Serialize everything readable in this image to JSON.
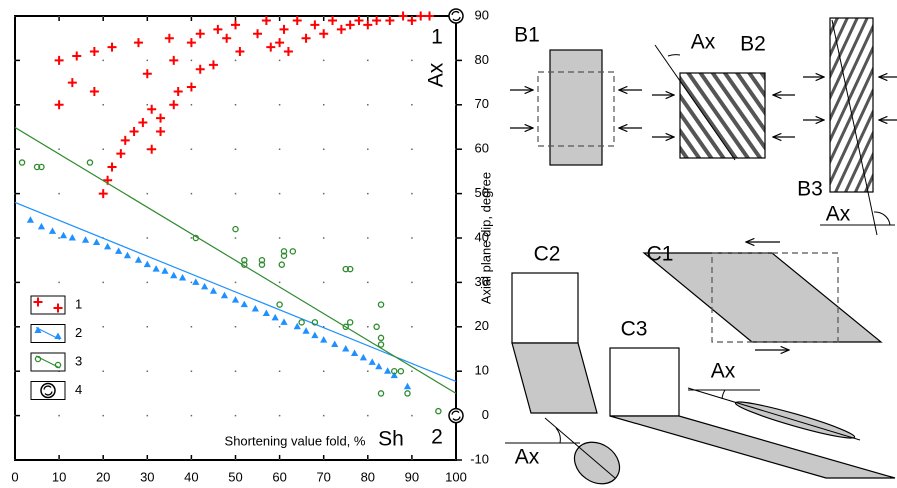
{
  "chart_data": {
    "type": "scatter",
    "x_label": "Shortening value fold, %",
    "y_label": "Axial plane dip, degree",
    "xlim": [
      0,
      100
    ],
    "xticks": [
      0,
      10,
      20,
      30,
      40,
      50,
      60,
      70,
      80,
      90,
      100
    ],
    "ylim": [
      -10,
      90
    ],
    "yticks": [
      -10,
      0,
      10,
      20,
      30,
      40,
      50,
      60,
      70,
      80,
      90
    ],
    "grid": "dots",
    "legend_position": "lower left",
    "annotations": [
      "1",
      "Ax",
      "2",
      "Sh"
    ],
    "series": [
      {
        "name": "1",
        "marker": "plus",
        "color": "#ff0000",
        "x": [
          10,
          10,
          14,
          13,
          18,
          18,
          20,
          21,
          22,
          24,
          22,
          25,
          27,
          29,
          31,
          31,
          33,
          33,
          28,
          30,
          35,
          36,
          37,
          36,
          40,
          40,
          42,
          42,
          45,
          46,
          48,
          50,
          51,
          55,
          57,
          58,
          60,
          61,
          62,
          64,
          66,
          68,
          70,
          72,
          74,
          76,
          78,
          80,
          82,
          85,
          88,
          90,
          92,
          94
        ],
        "y": [
          80,
          70,
          81,
          75,
          73,
          82,
          50,
          53,
          56,
          59,
          83,
          62,
          64,
          66,
          60,
          69,
          64,
          67,
          84,
          77,
          85,
          70,
          73,
          80,
          74,
          84,
          78,
          86,
          79,
          87,
          85,
          88,
          82,
          86,
          89,
          83,
          84,
          87,
          82,
          89,
          85,
          88,
          86,
          89,
          87,
          88,
          89,
          88,
          89,
          89,
          90,
          89,
          90,
          90
        ]
      },
      {
        "name": "2",
        "marker": "triangle",
        "color": "#1e90ff",
        "x": [
          3.5,
          6,
          8.5,
          11,
          13,
          16,
          18.5,
          21,
          23.5,
          25.5,
          28,
          30,
          32,
          34,
          36,
          38,
          41,
          43,
          45,
          47.5,
          50,
          52,
          54.5,
          57,
          59,
          61,
          64,
          66,
          68,
          70,
          72.5,
          75,
          77,
          79,
          81,
          82.5,
          84.5,
          86,
          89
        ],
        "y": [
          44,
          42.5,
          41.5,
          40.5,
          40,
          39.5,
          39,
          38,
          37,
          36,
          35,
          34,
          33,
          32.5,
          31.5,
          31,
          30,
          29,
          28,
          27,
          26,
          25,
          24,
          23,
          22,
          21,
          20,
          19,
          18,
          17,
          16,
          15,
          14,
          13,
          12,
          11,
          10,
          9,
          6.5
        ],
        "line": {
          "x": [
            0,
            100
          ],
          "y": [
            48,
            7.7
          ]
        }
      },
      {
        "name": "3",
        "marker": "circle",
        "color": "#2e8b2e",
        "x": [
          1.6,
          5,
          6,
          17,
          41,
          50,
          52,
          52,
          56,
          56,
          61,
          61,
          60.5,
          63,
          60,
          65,
          68,
          75,
          76,
          75,
          76,
          82,
          83,
          83,
          83,
          83,
          86,
          87.5,
          89,
          96
        ],
        "y": [
          57,
          56,
          56,
          57,
          40,
          42,
          35,
          34,
          35,
          34,
          37,
          36,
          34,
          37,
          25,
          21,
          21,
          33,
          33,
          20,
          21,
          20,
          17.5,
          16,
          25,
          5,
          10,
          10,
          5,
          1
        ],
        "line": {
          "x": [
            0,
            100
          ],
          "y": [
            64.9,
            5
          ]
        }
      },
      {
        "name": "4",
        "marker": "rotation",
        "color": "#000000",
        "x": [
          100,
          100
        ],
        "y": [
          90,
          0
        ]
      }
    ]
  },
  "diagrams": {
    "panels": [
      "B1",
      "B2",
      "B3",
      "C1",
      "C2",
      "C3"
    ],
    "angle_label": [
      "Ax",
      "Ax",
      "Ax",
      "Ax"
    ]
  }
}
